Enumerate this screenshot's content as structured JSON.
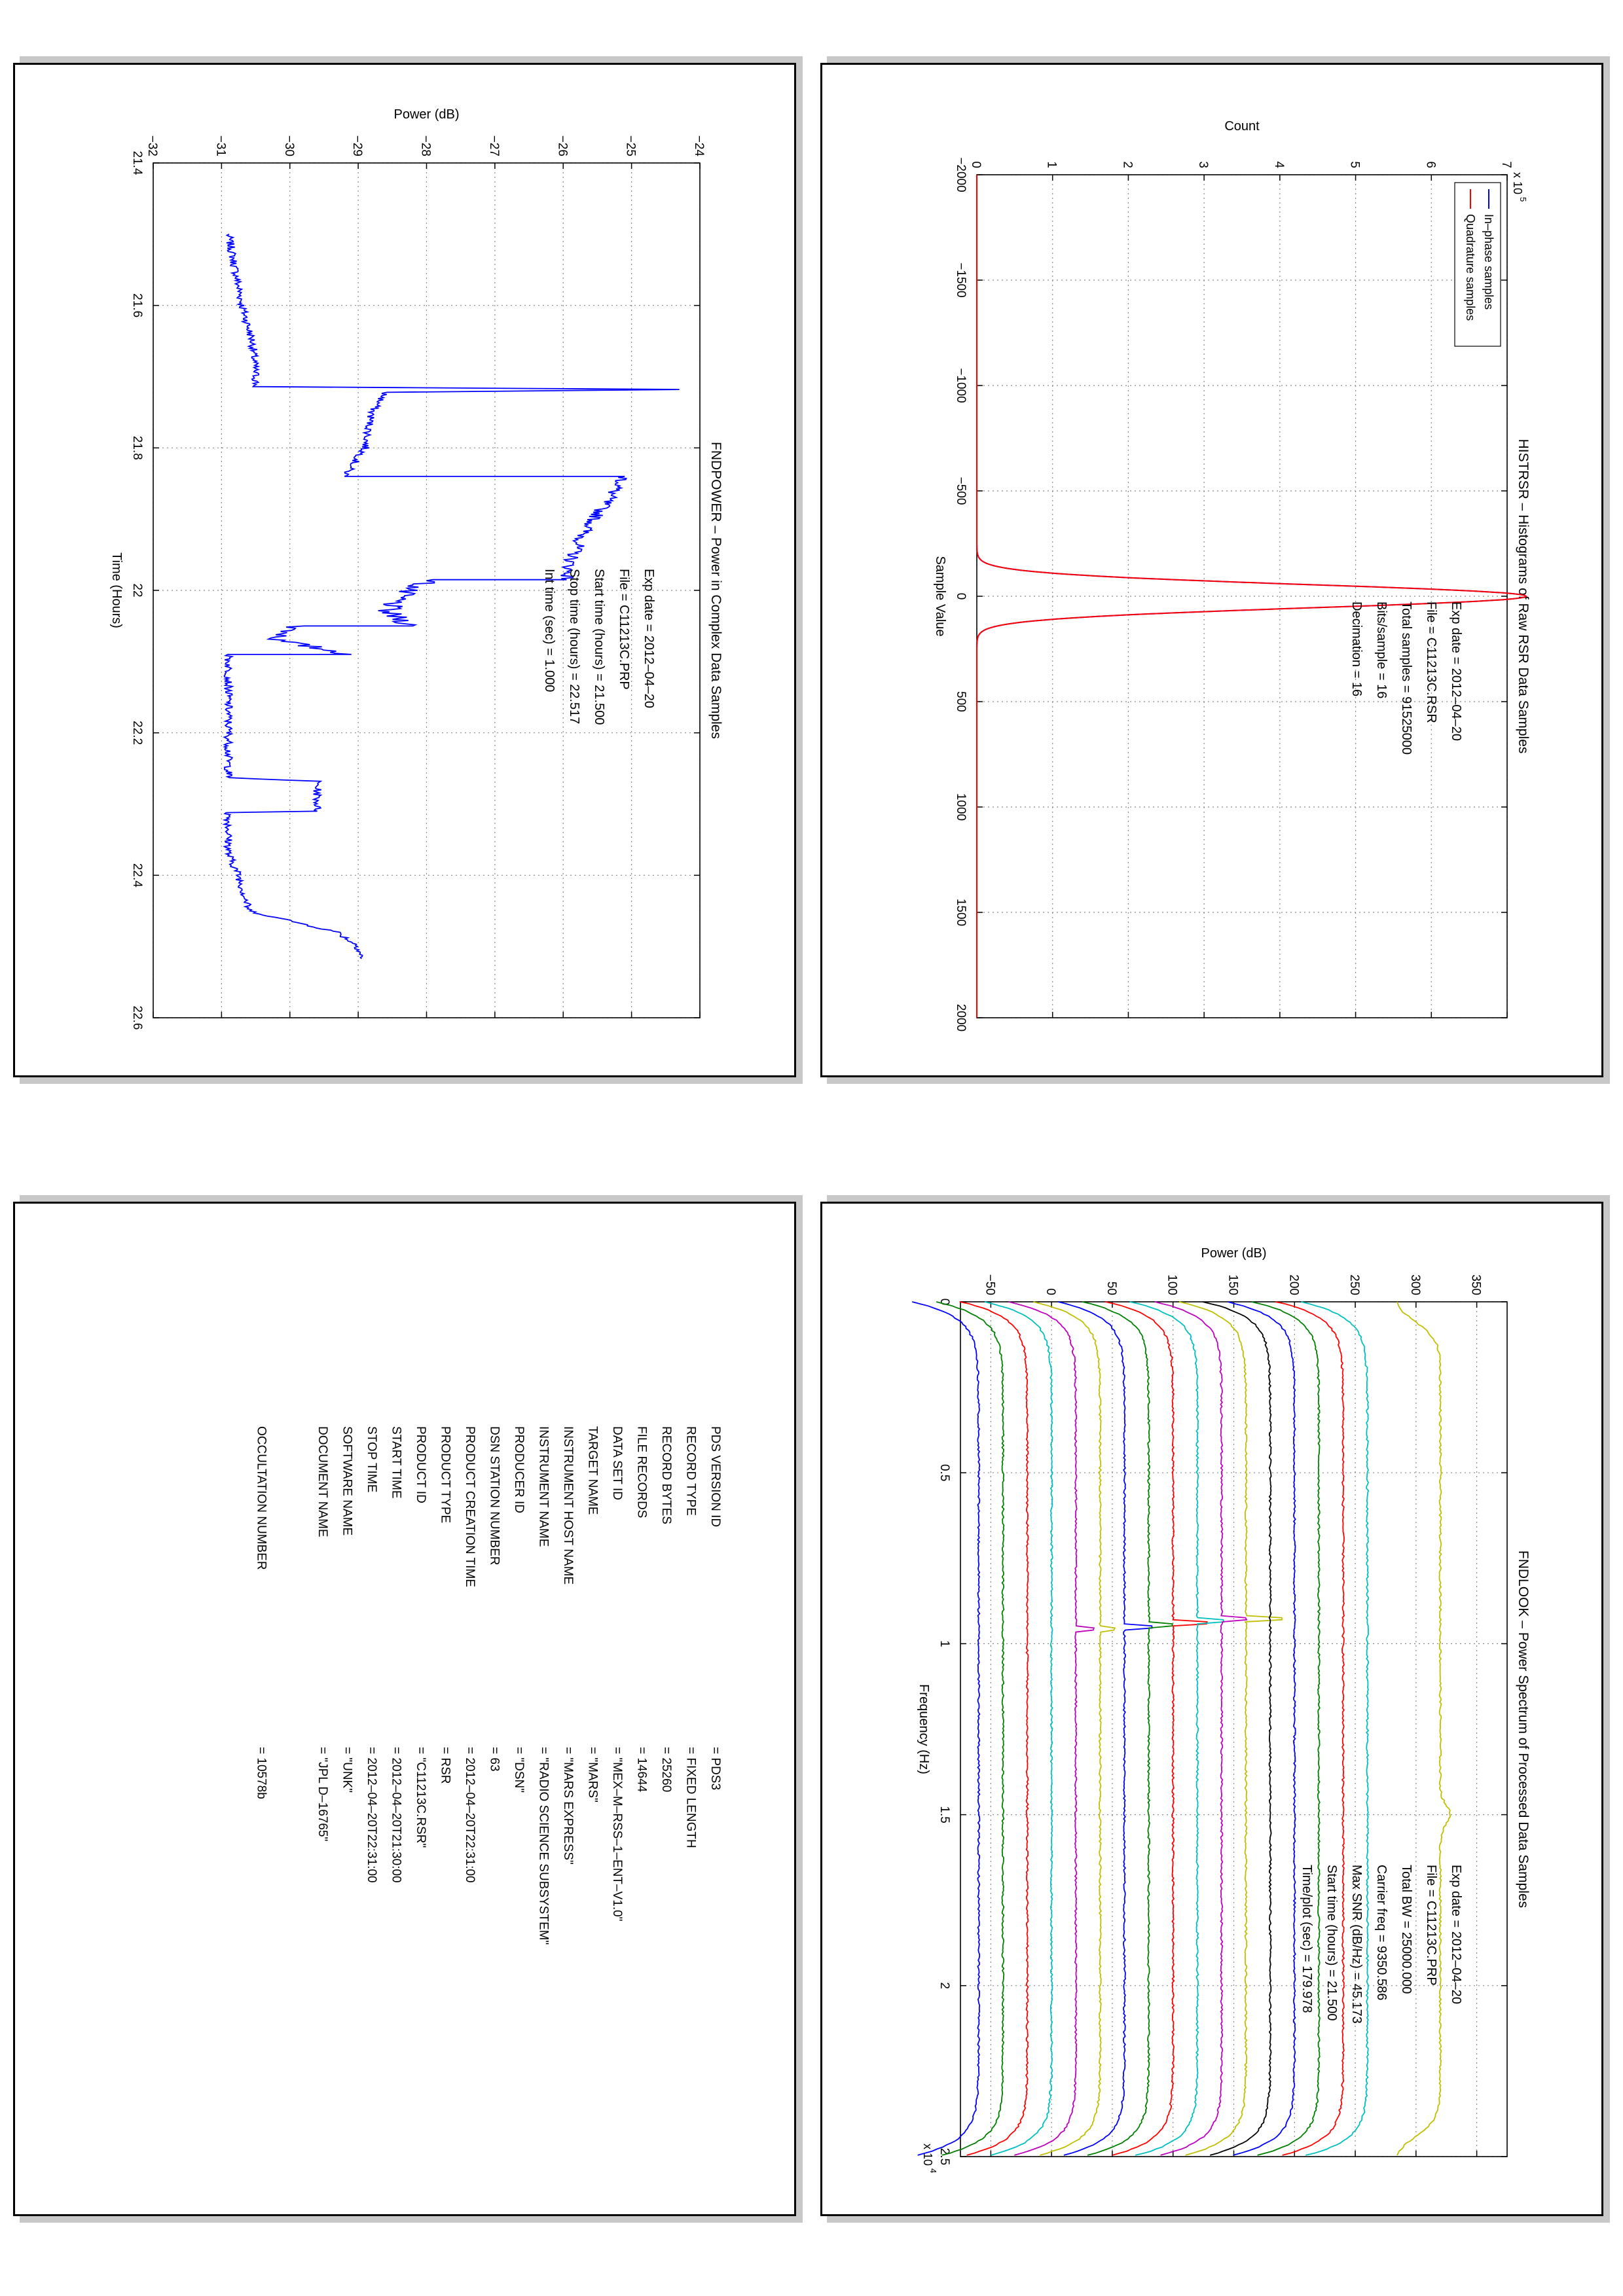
{
  "histrsr": {
    "chart_data": {
      "type": "line",
      "title": "HISTRSR – Histograms of Raw RSR Data Samples",
      "xlabel": "Sample Value",
      "ylabel": "Count",
      "y_multiplier": "x 10",
      "y_multiplier_exp": "5",
      "xlim": [
        -2000,
        2000
      ],
      "ylim": [
        0,
        7
      ],
      "xticks": [
        "−2000",
        "−1500",
        "−1000",
        "−500",
        "0",
        "500",
        "1000",
        "1500",
        "2000"
      ],
      "yticks": [
        "0",
        "1",
        "2",
        "3",
        "4",
        "5",
        "6",
        "7"
      ],
      "grid": true,
      "legend_position": "top-left",
      "series": [
        {
          "name": "In–phase samples",
          "color": "#0000ff",
          "peak_x": 0,
          "peak_y": 7.25,
          "sigma": 55
        },
        {
          "name": "Quadrature samples",
          "color": "#ff0000",
          "peak_x": 0,
          "peak_y": 7.25,
          "sigma": 55
        }
      ],
      "info": [
        "Exp date = 2012–04–20",
        "File = C11213C.RSR",
        "Total samples =   91525000",
        "Bits/sample    =      16",
        "Decimation    =      16"
      ]
    }
  },
  "fndpower": {
    "chart_data": {
      "type": "line",
      "title": "FNDPOWER – Power in Complex Data Samples",
      "xlabel": "Time (Hours)",
      "ylabel": "Power (dB)",
      "xlim": [
        21.4,
        22.6
      ],
      "ylim": [
        -32,
        -24
      ],
      "xticks": [
        "21.4",
        "21.6",
        "21.8",
        "22",
        "22.2",
        "22.4",
        "22.6"
      ],
      "yticks": [
        "−32",
        "−31",
        "−30",
        "−29",
        "−28",
        "−27",
        "−26",
        "−25",
        "−24"
      ],
      "grid": true,
      "series": [
        {
          "color": "#0000ff",
          "x": [
            21.5,
            21.55,
            21.6,
            21.65,
            21.699,
            21.714,
            21.718,
            21.722,
            21.75,
            21.8,
            21.84,
            21.84,
            21.88,
            21.92,
            21.96,
            21.985,
            21.985,
            22.0,
            22.03,
            22.05,
            22.05,
            22.07,
            22.09,
            22.09,
            22.12,
            22.16,
            22.2,
            22.25,
            22.263,
            22.268,
            22.31,
            22.312,
            22.37,
            22.38,
            22.4,
            22.45,
            22.48,
            22.5,
            22.517
          ],
          "y": [
            -30.9,
            -30.8,
            -30.7,
            -30.55,
            -30.5,
            -30.5,
            -24.35,
            -28.6,
            -28.8,
            -28.9,
            -29.2,
            -25.1,
            -25.4,
            -25.7,
            -25.9,
            -25.95,
            -27.9,
            -28.3,
            -28.6,
            -28.2,
            -29.9,
            -30.2,
            -29.1,
            -30.9,
            -30.9,
            -30.9,
            -30.9,
            -30.9,
            -30.9,
            -29.6,
            -29.6,
            -30.9,
            -30.9,
            -30.85,
            -30.75,
            -30.6,
            -29.3,
            -29.0,
            -28.95
          ]
        }
      ],
      "info": [
        "Exp date = 2012–04–20",
        "File = C11213C.PRP",
        "Start time (hours) = 21.500",
        "Stop time (hours)  =  22.517",
        "Int time (sec)  =    1.000"
      ]
    }
  },
  "fndlook": {
    "chart_data": {
      "type": "line",
      "title": "FNDLOOK – Power Spectrum of Processed Data Samples",
      "xlabel": "Frequency (Hz)",
      "ylabel": "Power (dB)",
      "x_multiplier": "x 10",
      "x_multiplier_exp": "4",
      "xlim": [
        0,
        2.5
      ],
      "ylim": [
        -75,
        375
      ],
      "xticks": [
        "0",
        "0.5",
        "1",
        "1.5",
        "2",
        "2.5"
      ],
      "yticks": [
        "−50",
        "0",
        "50",
        "100",
        "150",
        "200",
        "250",
        "300",
        "350"
      ],
      "grid": true,
      "series": [
        {
          "color": "#0000ff",
          "level": -60,
          "peak_x": 0.97,
          "peak": 0
        },
        {
          "color": "#008000",
          "level": -40,
          "peak_x": 0.97,
          "peak": 0
        },
        {
          "color": "#ff0000",
          "level": -20,
          "peak_x": 0.965,
          "peak": 0
        },
        {
          "color": "#00bfbf",
          "level": 0,
          "peak_x": 0.965,
          "peak": 0
        },
        {
          "color": "#bf00bf",
          "level": 20,
          "peak_x": 0.96,
          "peak": 15
        },
        {
          "color": "#bfbf00",
          "level": 40,
          "peak_x": 0.955,
          "peak": 12
        },
        {
          "color": "#0000ff",
          "level": 60,
          "peak_x": 0.95,
          "peak": 22
        },
        {
          "color": "#008000",
          "level": 80,
          "peak_x": 0.945,
          "peak": 20
        },
        {
          "color": "#ff0000",
          "level": 100,
          "peak_x": 0.94,
          "peak": 28
        },
        {
          "color": "#00bfbf",
          "level": 120,
          "peak_x": 0.935,
          "peak": 22
        },
        {
          "color": "#bf00bf",
          "level": 140,
          "peak_x": 0.93,
          "peak": 20
        },
        {
          "color": "#bfbf00",
          "level": 160,
          "peak_x": 0.925,
          "peak": 30
        },
        {
          "color": "#000000",
          "level": 180,
          "peak_x": 0.92,
          "peak": 0
        },
        {
          "color": "#0000ff",
          "level": 200,
          "peak_x": 0.92,
          "peak": 0
        },
        {
          "color": "#008000",
          "level": 220,
          "peak_x": 0.92,
          "peak": 0
        },
        {
          "color": "#ff0000",
          "level": 240,
          "peak_x": 0.92,
          "peak": 0
        },
        {
          "color": "#00bfbf",
          "level": 260,
          "peak_x": 0.92,
          "peak": 0
        },
        {
          "color": "#bfbf00",
          "level": 320,
          "peak_x": 1.5,
          "peak": 0,
          "broad": true
        }
      ],
      "info": [
        "Exp date = 2012–04–20",
        "File = C11213C.PRP",
        "Total BW =      25000.000",
        "Carrier freq =   9350.586",
        "Max SNR (dB/Hz) =    45.173",
        "Start time (hours) =  21.500",
        "Time/plot (sec) =    179.978"
      ]
    }
  },
  "label": {
    "rows": [
      {
        "key": "PDS VERSION ID",
        "value": "=  PDS3"
      },
      {
        "key": "RECORD TYPE",
        "value": "=  FIXED LENGTH"
      },
      {
        "key": "RECORD BYTES",
        "value": "=  25260"
      },
      {
        "key": "FILE RECORDS",
        "value": "=  14644"
      },
      {
        "key": "DATA SET ID",
        "value": "=  \"MEX–M–RSS–1–ENT–V1.0\""
      },
      {
        "key": "TARGET NAME",
        "value": "=  \"MARS\""
      },
      {
        "key": "INSTRUMENT HOST NAME",
        "value": "=  \"MARS EXPRESS\""
      },
      {
        "key": "INSTRUMENT NAME",
        "value": "=  \"RADIO SCIENCE SUBSYSTEM\""
      },
      {
        "key": "PRODUCER ID",
        "value": "=  \"DSN\""
      },
      {
        "key": "DSN STATION NUMBER",
        "value": "=  63"
      },
      {
        "key": "PRODUCT CREATION TIME",
        "value": "=  2012–04–20T22:31:00"
      },
      {
        "key": "PRODUCT TYPE",
        "value": "=  RSR"
      },
      {
        "key": "PRODUCT ID",
        "value": "=  \"C11213C.RSR\""
      },
      {
        "key": "START TIME",
        "value": "=  2012–04–20T21:30:00"
      },
      {
        "key": "STOP TIME",
        "value": "=  2012–04–20T22:31:00"
      },
      {
        "key": "SOFTWARE NAME",
        "value": "=  \"UNK\""
      },
      {
        "key": "DOCUMENT NAME",
        "value": "=  \"JPL D–16765\""
      },
      {
        "key": "OCCULTATION NUMBER",
        "value": "=  10578b"
      }
    ]
  }
}
